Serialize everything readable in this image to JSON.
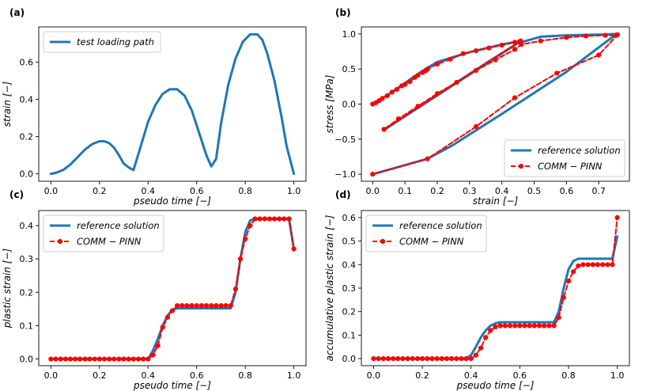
{
  "chart_data": [
    {
      "panel": "(a)",
      "type": "line",
      "xlabel": "pseudo time [−]",
      "ylabel": "strain [−]",
      "xlim": [
        -0.05,
        1.05
      ],
      "ylim": [
        -0.04,
        0.79
      ],
      "xticks": [
        0.0,
        0.2,
        0.4,
        0.6,
        0.8,
        1.0
      ],
      "xtick_labels": [
        "0.0",
        "0.2",
        "0.4",
        "0.6",
        "0.8",
        "1.0"
      ],
      "yticks": [
        0.0,
        0.2,
        0.4,
        0.6
      ],
      "ytick_labels": [
        "0.0",
        "0.2",
        "0.4",
        "0.6"
      ],
      "legend_position": "top-left",
      "series": [
        {
          "name": "test loading path",
          "color": "#1f77b4",
          "style": "solid",
          "x": [
            0.0,
            0.02,
            0.05,
            0.08,
            0.11,
            0.14,
            0.17,
            0.2,
            0.22,
            0.24,
            0.26,
            0.28,
            0.3,
            0.32,
            0.34,
            0.37,
            0.4,
            0.43,
            0.46,
            0.49,
            0.52,
            0.55,
            0.58,
            0.61,
            0.64,
            0.66,
            0.68,
            0.7,
            0.73,
            0.76,
            0.79,
            0.82,
            0.85,
            0.87,
            0.89,
            0.92,
            0.95,
            0.97,
            1.0
          ],
          "y": [
            0.0,
            0.005,
            0.02,
            0.05,
            0.09,
            0.13,
            0.16,
            0.175,
            0.175,
            0.165,
            0.14,
            0.1,
            0.055,
            0.035,
            0.02,
            0.15,
            0.28,
            0.37,
            0.43,
            0.455,
            0.455,
            0.42,
            0.34,
            0.22,
            0.1,
            0.04,
            0.08,
            0.27,
            0.48,
            0.62,
            0.71,
            0.75,
            0.75,
            0.72,
            0.65,
            0.5,
            0.3,
            0.15,
            0.0
          ]
        }
      ]
    },
    {
      "panel": "(b)",
      "type": "line",
      "xlabel": "strain [−]",
      "ylabel": "stress  [MPa]",
      "xlim": [
        -0.035,
        0.795
      ],
      "ylim": [
        -1.1,
        1.1
      ],
      "xticks": [
        0.0,
        0.1,
        0.2,
        0.3,
        0.4,
        0.5,
        0.6,
        0.7
      ],
      "xtick_labels": [
        "0.0",
        "0.1",
        "0.2",
        "0.3",
        "0.4",
        "0.5",
        "0.6",
        "0.7"
      ],
      "yticks": [
        -1.0,
        -0.5,
        0.0,
        0.5,
        1.0
      ],
      "ytick_labels": [
        "−1.0",
        "−0.5",
        "0.0",
        "0.5",
        "1.0"
      ],
      "legend_position": "bottom-right",
      "series": [
        {
          "name": "reference solution",
          "color": "#1f77b4",
          "style": "solid",
          "x": [
            0.0,
            0.05,
            0.1,
            0.15,
            0.2,
            0.3,
            0.4,
            0.46,
            0.46,
            0.035,
            0.035,
            0.2,
            0.35,
            0.45,
            0.52,
            0.6,
            0.7,
            0.755,
            0.755,
            0.6,
            0.4,
            0.25,
            0.17,
            0.0
          ],
          "y": [
            0.0,
            0.14,
            0.3,
            0.46,
            0.6,
            0.74,
            0.85,
            0.9,
            0.9,
            -0.37,
            -0.37,
            0.13,
            0.58,
            0.87,
            0.96,
            0.98,
            0.99,
            1.0,
            1.0,
            0.46,
            -0.14,
            -0.58,
            -0.78,
            -1.0
          ]
        },
        {
          "name": "COMM − PINN",
          "color": "#ff0000",
          "style": "dashed",
          "marker": "circle",
          "x": [
            0.0,
            0.01,
            0.02,
            0.03,
            0.045,
            0.06,
            0.075,
            0.09,
            0.1,
            0.115,
            0.13,
            0.14,
            0.155,
            0.165,
            0.17,
            0.2,
            0.24,
            0.28,
            0.32,
            0.36,
            0.4,
            0.44,
            0.455,
            0.458,
            0.035,
            0.08,
            0.14,
            0.2,
            0.26,
            0.32,
            0.38,
            0.44,
            0.46,
            0.52,
            0.6,
            0.66,
            0.72,
            0.755,
            0.758,
            0.7,
            0.57,
            0.44,
            0.32,
            0.17,
            0.0
          ],
          "y": [
            0.0,
            0.02,
            0.05,
            0.08,
            0.12,
            0.17,
            0.21,
            0.26,
            0.28,
            0.32,
            0.38,
            0.41,
            0.45,
            0.48,
            0.5,
            0.57,
            0.64,
            0.72,
            0.76,
            0.8,
            0.84,
            0.88,
            0.89,
            0.9,
            -0.36,
            -0.21,
            -0.03,
            0.15,
            0.31,
            0.48,
            0.63,
            0.78,
            0.85,
            0.9,
            0.95,
            0.97,
            0.98,
            0.98,
            0.99,
            0.7,
            0.44,
            0.09,
            -0.32,
            -0.78,
            -1.0
          ]
        }
      ]
    },
    {
      "panel": "(c)",
      "type": "line",
      "xlabel": "pseudo time [−]",
      "ylabel": "plastic strain [−]",
      "xlim": [
        -0.05,
        1.05
      ],
      "ylim": [
        -0.02,
        0.445
      ],
      "xticks": [
        0.0,
        0.2,
        0.4,
        0.6,
        0.8,
        1.0
      ],
      "xtick_labels": [
        "0.0",
        "0.2",
        "0.4",
        "0.6",
        "0.8",
        "1.0"
      ],
      "yticks": [
        0.0,
        0.1,
        0.2,
        0.3,
        0.4
      ],
      "ytick_labels": [
        "0.0",
        "0.1",
        "0.2",
        "0.3",
        "0.4"
      ],
      "legend_position": "top-left",
      "series": [
        {
          "name": "reference solution",
          "color": "#1f77b4",
          "style": "solid",
          "x": [
            0.0,
            0.4,
            0.42,
            0.44,
            0.46,
            0.48,
            0.5,
            0.52,
            0.74,
            0.76,
            0.78,
            0.8,
            0.82,
            0.84,
            0.98,
            1.0
          ],
          "y": [
            0.0,
            0.0,
            0.025,
            0.06,
            0.1,
            0.13,
            0.148,
            0.152,
            0.152,
            0.2,
            0.3,
            0.38,
            0.415,
            0.42,
            0.42,
            0.33
          ]
        },
        {
          "name": "COMM − PINN",
          "color": "#ff0000",
          "style": "dashed",
          "marker": "circle",
          "x": [
            0.0,
            0.02,
            0.04,
            0.06,
            0.08,
            0.1,
            0.12,
            0.14,
            0.16,
            0.18,
            0.2,
            0.22,
            0.24,
            0.26,
            0.28,
            0.3,
            0.32,
            0.34,
            0.36,
            0.38,
            0.4,
            0.42,
            0.44,
            0.46,
            0.48,
            0.5,
            0.52,
            0.54,
            0.56,
            0.58,
            0.6,
            0.62,
            0.64,
            0.66,
            0.68,
            0.7,
            0.72,
            0.74,
            0.76,
            0.78,
            0.8,
            0.82,
            0.84,
            0.86,
            0.88,
            0.9,
            0.92,
            0.94,
            0.96,
            0.98,
            1.0
          ],
          "y": [
            0.0,
            0.0,
            0.0,
            0.0,
            0.0,
            0.0,
            0.0,
            0.0,
            0.0,
            0.0,
            0.0,
            0.0,
            0.0,
            0.0,
            0.0,
            0.0,
            0.0,
            0.0,
            0.0,
            0.0,
            0.0,
            0.012,
            0.04,
            0.095,
            0.125,
            0.145,
            0.16,
            0.16,
            0.16,
            0.16,
            0.16,
            0.16,
            0.16,
            0.16,
            0.16,
            0.16,
            0.16,
            0.16,
            0.21,
            0.3,
            0.36,
            0.4,
            0.42,
            0.42,
            0.42,
            0.42,
            0.42,
            0.42,
            0.42,
            0.42,
            0.33
          ]
        }
      ]
    },
    {
      "panel": "(d)",
      "type": "line",
      "xlabel": "pseudo time [−]",
      "ylabel": "accumulative plastic strain [−]",
      "xlim": [
        -0.05,
        1.05
      ],
      "ylim": [
        -0.03,
        0.63
      ],
      "xticks": [
        0.0,
        0.2,
        0.4,
        0.6,
        0.8,
        1.0
      ],
      "xtick_labels": [
        "0.0",
        "0.2",
        "0.4",
        "0.6",
        "0.8",
        "1.0"
      ],
      "yticks": [
        0.0,
        0.1,
        0.2,
        0.3,
        0.4,
        0.5,
        0.6
      ],
      "ytick_labels": [
        "0.0",
        "0.1",
        "0.2",
        "0.3",
        "0.4",
        "0.5",
        "0.6"
      ],
      "legend_position": "top-left",
      "series": [
        {
          "name": "reference solution",
          "color": "#1f77b4",
          "style": "solid",
          "x": [
            0.0,
            0.38,
            0.4,
            0.42,
            0.44,
            0.46,
            0.48,
            0.5,
            0.52,
            0.74,
            0.76,
            0.78,
            0.8,
            0.82,
            0.84,
            0.98,
            1.0
          ],
          "y": [
            0.0,
            0.0,
            0.015,
            0.05,
            0.09,
            0.12,
            0.14,
            0.15,
            0.155,
            0.155,
            0.2,
            0.3,
            0.38,
            0.415,
            0.425,
            0.425,
            0.52
          ]
        },
        {
          "name": "COMM − PINN",
          "color": "#ff0000",
          "style": "dashed",
          "marker": "circle",
          "x": [
            0.0,
            0.02,
            0.04,
            0.06,
            0.08,
            0.1,
            0.12,
            0.14,
            0.16,
            0.18,
            0.2,
            0.22,
            0.24,
            0.26,
            0.28,
            0.3,
            0.32,
            0.34,
            0.36,
            0.38,
            0.4,
            0.42,
            0.44,
            0.46,
            0.48,
            0.5,
            0.52,
            0.54,
            0.56,
            0.58,
            0.6,
            0.62,
            0.64,
            0.66,
            0.68,
            0.7,
            0.72,
            0.74,
            0.76,
            0.78,
            0.8,
            0.82,
            0.84,
            0.86,
            0.88,
            0.9,
            0.92,
            0.94,
            0.96,
            0.98,
            1.0
          ],
          "y": [
            0.0,
            0.0,
            0.0,
            0.0,
            0.0,
            0.0,
            0.0,
            0.0,
            0.0,
            0.0,
            0.0,
            0.0,
            0.0,
            0.0,
            0.0,
            0.0,
            0.0,
            0.0,
            0.0,
            0.0,
            0.0,
            0.015,
            0.045,
            0.09,
            0.12,
            0.135,
            0.14,
            0.14,
            0.14,
            0.14,
            0.14,
            0.14,
            0.14,
            0.14,
            0.14,
            0.14,
            0.14,
            0.14,
            0.175,
            0.26,
            0.33,
            0.37,
            0.395,
            0.4,
            0.4,
            0.4,
            0.4,
            0.4,
            0.4,
            0.4,
            0.6
          ]
        }
      ]
    }
  ]
}
